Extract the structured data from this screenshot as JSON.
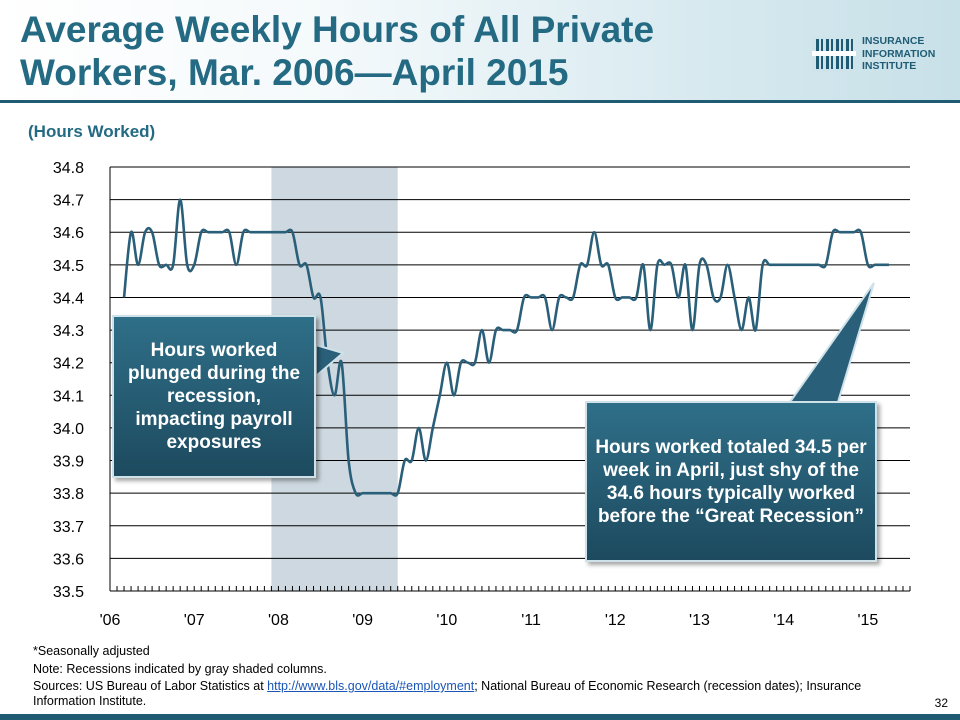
{
  "title": "Average Weekly Hours of All Private Workers, Mar. 2006—April 2015",
  "logo": {
    "line1": "INSURANCE",
    "line2": "INFORMATION",
    "line3": "INSTITUTE"
  },
  "callouts": {
    "left": "Hours worked plunged during the recession, impacting payroll exposures",
    "right": "Hours worked totaled 34.5 per week in April, just shy of the 34.6 hours typically worked before the “Great Recession”"
  },
  "notes": {
    "seasonal": "*Seasonally adjusted",
    "recession": "Note: Recessions indicated by gray shaded columns.",
    "sources_prefix": "Sources: US Bureau of Labor Statistics at ",
    "sources_link": "http://www.bls.gov/data/#employment",
    "sources_suffix": ";   National Bureau of Economic Research (recession dates); Insurance Information Institute."
  },
  "page_number": "32",
  "colors": {
    "title": "#236a82",
    "line": "#2a5f7a",
    "recession": "#cdd8e0",
    "callout": "#2a5f79"
  },
  "chart_data": {
    "type": "line",
    "title": "",
    "subtitle": "(Hours Worked)",
    "xlabel": "",
    "ylabel": "",
    "ylim": [
      33.5,
      34.8
    ],
    "y_ticks": [
      "34.8",
      "34.7",
      "34.6",
      "34.5",
      "34.4",
      "34.3",
      "34.2",
      "34.1",
      "34.0",
      "33.9",
      "33.8",
      "33.7",
      "33.6",
      "33.5"
    ],
    "x_ticks": [
      "'06",
      "'07",
      "'08",
      "'09",
      "'10",
      "'11",
      "'12",
      "'13",
      "'14",
      "'15"
    ],
    "grid": true,
    "recession": {
      "start": "2007-12",
      "end": "2009-06"
    },
    "series": [
      {
        "start": "2006-03",
        "end": "2015-04",
        "frequency": "monthly",
        "values": [
          34.4,
          34.6,
          34.5,
          34.6,
          34.6,
          34.5,
          34.5,
          34.5,
          34.7,
          34.5,
          34.5,
          34.6,
          34.6,
          34.6,
          34.6,
          34.6,
          34.5,
          34.6,
          34.6,
          34.6,
          34.6,
          34.6,
          34.6,
          34.6,
          34.6,
          34.5,
          34.5,
          34.4,
          34.4,
          34.2,
          34.1,
          34.2,
          33.9,
          33.8,
          33.8,
          33.8,
          33.8,
          33.8,
          33.8,
          33.8,
          33.9,
          33.9,
          34.0,
          33.9,
          34.0,
          34.1,
          34.2,
          34.1,
          34.2,
          34.2,
          34.2,
          34.3,
          34.2,
          34.3,
          34.3,
          34.3,
          34.3,
          34.4,
          34.4,
          34.4,
          34.4,
          34.3,
          34.4,
          34.4,
          34.4,
          34.5,
          34.5,
          34.6,
          34.5,
          34.5,
          34.4,
          34.4,
          34.4,
          34.4,
          34.5,
          34.3,
          34.5,
          34.5,
          34.5,
          34.4,
          34.5,
          34.3,
          34.5,
          34.5,
          34.4,
          34.4,
          34.5,
          34.4,
          34.3,
          34.4,
          34.3,
          34.5,
          34.5,
          34.5,
          34.5,
          34.5,
          34.5,
          34.5,
          34.5,
          34.5,
          34.5,
          34.6,
          34.6,
          34.6,
          34.6,
          34.6,
          34.5,
          34.5,
          34.5,
          34.5
        ]
      }
    ]
  }
}
